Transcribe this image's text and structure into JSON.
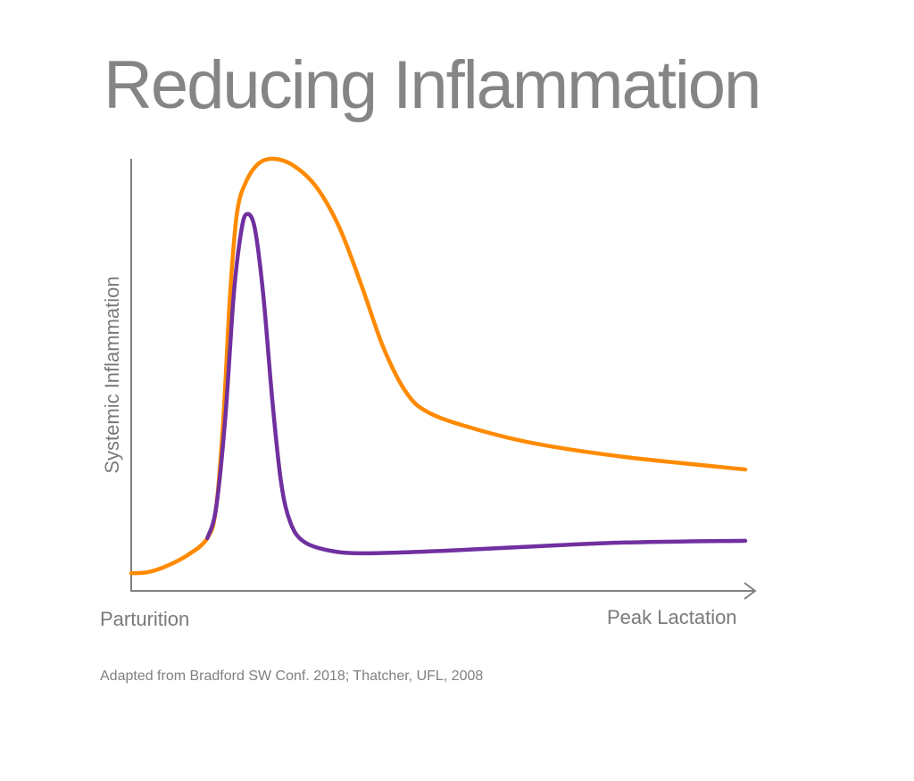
{
  "chart_data": {
    "type": "line",
    "title": "Reducing Inflammation",
    "xlabel_start": "Parturition",
    "xlabel_end": "Peak Lactation",
    "ylabel": "Systemic Inflammation",
    "caption": "Adapted from Bradford SW Conf. 2018; Thatcher, UFL, 2008",
    "xlim": [
      0,
      100
    ],
    "ylim": [
      0,
      100
    ],
    "grid": false,
    "ticks": false,
    "series": [
      {
        "color": "#FF8A00",
        "points": [
          [
            0,
            4.1
          ],
          [
            2.6,
            4.3
          ],
          [
            5.5,
            5.6
          ],
          [
            9.2,
            8.3
          ],
          [
            12.4,
            12.2
          ],
          [
            13.8,
            19.0
          ],
          [
            15.0,
            39.7
          ],
          [
            16.1,
            68.6
          ],
          [
            17.2,
            87.2
          ],
          [
            18.6,
            94.4
          ],
          [
            20.8,
            99.0
          ],
          [
            23.4,
            100
          ],
          [
            26.6,
            98.3
          ],
          [
            30.2,
            93.4
          ],
          [
            33.9,
            84.1
          ],
          [
            37.5,
            70.7
          ],
          [
            41.1,
            56.2
          ],
          [
            44.8,
            45.9
          ],
          [
            48.4,
            41.3
          ],
          [
            55.7,
            37.6
          ],
          [
            65.8,
            34.1
          ],
          [
            80.4,
            31.0
          ],
          [
            100,
            28.1
          ]
        ]
      },
      {
        "color": "#7030A0",
        "points": [
          [
            12.4,
            12.2
          ],
          [
            13.8,
            19.0
          ],
          [
            15.3,
            39.7
          ],
          [
            16.7,
            68.6
          ],
          [
            17.9,
            83.1
          ],
          [
            18.8,
            87.2
          ],
          [
            20.1,
            84.1
          ],
          [
            21.5,
            68.6
          ],
          [
            23.0,
            43.8
          ],
          [
            24.4,
            25.2
          ],
          [
            25.9,
            15.9
          ],
          [
            28.1,
            11.4
          ],
          [
            32.4,
            9.3
          ],
          [
            38.2,
            8.7
          ],
          [
            51.3,
            9.3
          ],
          [
            65.8,
            10.3
          ],
          [
            80.4,
            11.2
          ],
          [
            100,
            11.6
          ]
        ]
      }
    ]
  }
}
